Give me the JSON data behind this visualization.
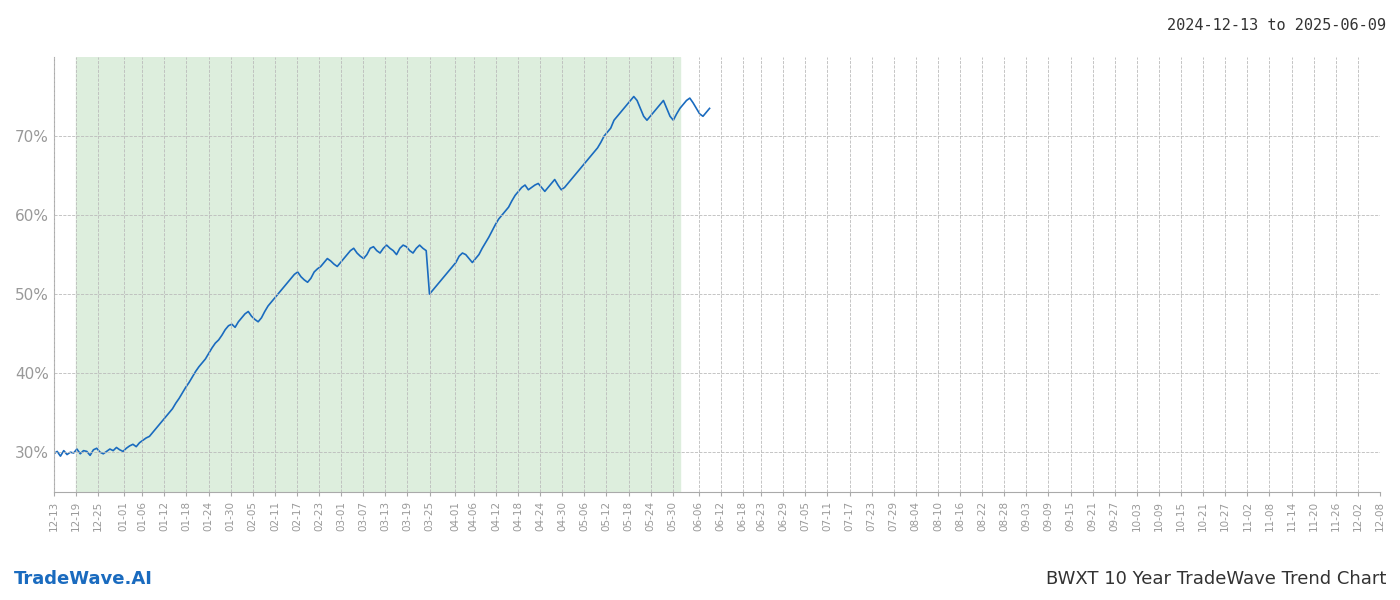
{
  "title_top_right": "2024-12-13 to 2025-06-09",
  "footer_left": "TradeWave.AI",
  "footer_right": "BWXT 10 Year TradeWave Trend Chart",
  "y_ticks": [
    30,
    40,
    50,
    60,
    70
  ],
  "y_min": 25,
  "y_max": 80,
  "chart_start": "2024-12-13",
  "chart_end": "2025-12-08",
  "data_end": "2025-06-09",
  "shaded_region_start": "2024-12-19",
  "shaded_region_end": "2025-06-01",
  "shaded_color": "#ddeedd",
  "line_color": "#1a6bbf",
  "line_width": 1.2,
  "background_color": "#ffffff",
  "grid_color": "#bbbbbb",
  "tick_label_color": "#999999",
  "x_tick_dates": [
    "12-13",
    "12-19",
    "12-25",
    "01-01",
    "01-06",
    "01-12",
    "01-18",
    "01-24",
    "01-30",
    "02-05",
    "02-11",
    "02-17",
    "02-23",
    "03-01",
    "03-07",
    "03-13",
    "03-19",
    "03-25",
    "04-01",
    "04-06",
    "04-12",
    "04-18",
    "04-24",
    "04-30",
    "05-06",
    "05-12",
    "05-18",
    "05-24",
    "05-30",
    "06-06",
    "06-12",
    "06-18",
    "06-23",
    "06-29",
    "07-05",
    "07-11",
    "07-17",
    "07-23",
    "07-29",
    "08-04",
    "08-10",
    "08-16",
    "08-22",
    "08-28",
    "09-03",
    "09-09",
    "09-15",
    "09-21",
    "09-27",
    "10-03",
    "10-09",
    "10-15",
    "10-21",
    "10-27",
    "11-02",
    "11-08",
    "11-14",
    "11-20",
    "11-26",
    "12-02",
    "12-08"
  ],
  "series": [
    29.8,
    30.1,
    29.5,
    30.2,
    29.7,
    30.0,
    29.9,
    30.4,
    29.8,
    30.2,
    30.1,
    29.6,
    30.3,
    30.5,
    30.0,
    29.8,
    30.1,
    30.4,
    30.2,
    30.6,
    30.3,
    30.1,
    30.5,
    30.8,
    31.0,
    30.7,
    31.2,
    31.5,
    31.8,
    32.0,
    32.5,
    33.0,
    33.5,
    34.0,
    34.5,
    35.0,
    35.5,
    36.2,
    36.8,
    37.5,
    38.2,
    38.8,
    39.5,
    40.2,
    40.8,
    41.3,
    41.8,
    42.5,
    43.2,
    43.8,
    44.2,
    44.8,
    45.5,
    46.0,
    46.2,
    45.8,
    46.5,
    47.0,
    47.5,
    47.8,
    47.2,
    46.8,
    46.5,
    47.0,
    47.8,
    48.5,
    49.0,
    49.5,
    50.0,
    50.5,
    51.0,
    51.5,
    52.0,
    52.5,
    52.8,
    52.2,
    51.8,
    51.5,
    52.0,
    52.8,
    53.2,
    53.5,
    54.0,
    54.5,
    54.2,
    53.8,
    53.5,
    54.0,
    54.5,
    55.0,
    55.5,
    55.8,
    55.2,
    54.8,
    54.5,
    55.0,
    55.8,
    56.0,
    55.5,
    55.2,
    55.8,
    56.2,
    55.8,
    55.5,
    55.0,
    55.8,
    56.2,
    56.0,
    55.5,
    55.2,
    55.8,
    56.2,
    55.8,
    55.5,
    50.0,
    50.5,
    51.0,
    51.5,
    52.0,
    52.5,
    53.0,
    53.5,
    54.0,
    54.8,
    55.2,
    55.0,
    54.5,
    54.0,
    54.5,
    55.0,
    55.8,
    56.5,
    57.2,
    58.0,
    58.8,
    59.5,
    60.0,
    60.5,
    61.0,
    61.8,
    62.5,
    63.0,
    63.5,
    63.8,
    63.2,
    63.5,
    63.8,
    64.0,
    63.5,
    63.0,
    63.5,
    64.0,
    64.5,
    63.8,
    63.2,
    63.5,
    64.0,
    64.5,
    65.0,
    65.5,
    66.0,
    66.5,
    67.0,
    67.5,
    68.0,
    68.5,
    69.2,
    70.0,
    70.5,
    71.0,
    72.0,
    72.5,
    73.0,
    73.5,
    74.0,
    74.5,
    75.0,
    74.5,
    73.5,
    72.5,
    72.0,
    72.5,
    73.0,
    73.5,
    74.0,
    74.5,
    73.5,
    72.5,
    72.0,
    72.8,
    73.5,
    74.0,
    74.5,
    74.8,
    74.2,
    73.5,
    72.8,
    72.5,
    73.0,
    73.5
  ]
}
